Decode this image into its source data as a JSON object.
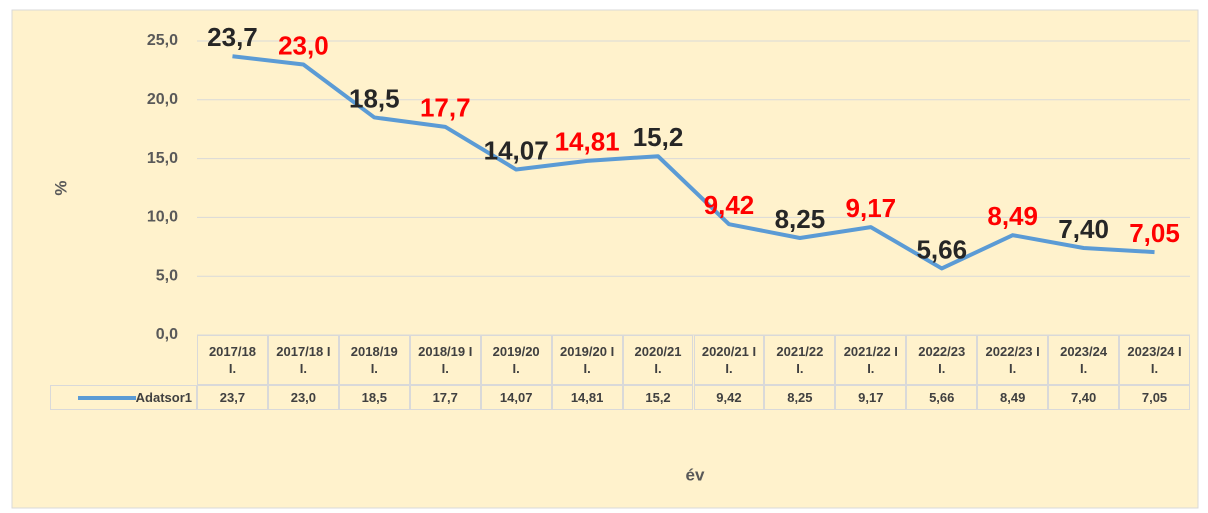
{
  "chart_data": {
    "type": "line",
    "x_label": "év",
    "y_label": "%",
    "categories": [
      "2017/18 I.",
      "2017/18 II.",
      "2018/19 I.",
      "2018/19 II.",
      "2019/20 I.",
      "2019/20 II.",
      "2020/21 I.",
      "2020/21 II.",
      "2021/22 I.",
      "2021/22 II.",
      "2022/23 I.",
      "2022/23 II.",
      "2023/24 I.",
      "2023/24 II."
    ],
    "series": [
      {
        "name": "Adatsor1",
        "color": "#5b9bd5",
        "values": [
          23.7,
          23.0,
          18.5,
          17.7,
          14.07,
          14.81,
          15.2,
          9.42,
          8.25,
          9.17,
          5.66,
          8.49,
          7.4,
          7.05
        ],
        "value_labels": [
          "23,7",
          "23,0",
          "18,5",
          "17,7",
          "14,07",
          "14,81",
          "15,2",
          "9,42",
          "8,25",
          "9,17",
          "5,66",
          "8,49",
          "7,40",
          "7,05"
        ],
        "label_colors": [
          "#262626",
          "#ff0000",
          "#262626",
          "#ff0000",
          "#262626",
          "#ff0000",
          "#262626",
          "#ff0000",
          "#262626",
          "#ff0000",
          "#262626",
          "#ff0000",
          "#262626",
          "#ff0000"
        ]
      }
    ],
    "ylim": [
      0,
      25
    ],
    "yticks": [
      {
        "value": 0,
        "label": "0,0"
      },
      {
        "value": 5,
        "label": "5,0"
      },
      {
        "value": 10,
        "label": "10,0"
      },
      {
        "value": 15,
        "label": "15,0"
      },
      {
        "value": 20,
        "label": "20,0"
      },
      {
        "value": 25,
        "label": "25,0"
      }
    ],
    "grid": true,
    "data_table": true
  }
}
